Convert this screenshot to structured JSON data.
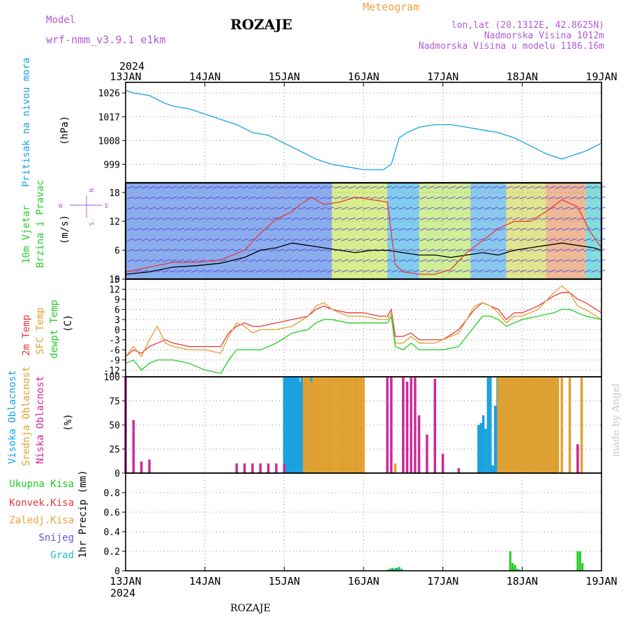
{
  "header": {
    "model_label": "Model",
    "model_value": "wrf-nmm_v3.9.1 e1km",
    "station": "ROZAJE",
    "product": "Meteogram",
    "coords": "lon,lat (20.1312E, 42.8625N)",
    "altitude": "Nadmorska Visina 1012m",
    "model_altitude": "Nadmorska Visina u modelu 1186.16m"
  },
  "footer": {
    "station": "ROZAJE",
    "credit": "made by Angel"
  },
  "time_axis": {
    "year": "2024",
    "labels": [
      "13JAN",
      "14JAN",
      "15JAN",
      "16JAN",
      "17JAN",
      "18JAN",
      "19JAN"
    ]
  },
  "colors": {
    "pressure": "#1aa2e0",
    "wind_label": "#2ec92e",
    "t2m": "#e53a3a",
    "sfc": "#e0a030",
    "dewpt": "#22cc22",
    "cloud_high": "#1aa2e0",
    "cloud_mid": "#e0a030",
    "cloud_low": "#cc2a9c",
    "magenta": "#b25ad8",
    "orange": "#f0a040"
  },
  "panels": {
    "pressure": {
      "label": "Pritisak na nivou mora",
      "unit": "(hPa)"
    },
    "wind": {
      "label1": "10m Vjetar",
      "label2": "Brzina i Pravac",
      "unit": "(m/s)",
      "compass": {
        "north": "N",
        "east": "E",
        "west": "W",
        "south": "S"
      }
    },
    "temp": {
      "label1": "2m Temp",
      "label2": "SFC Temp",
      "label3": "dewpt Temp",
      "unit": "(C)"
    },
    "cloud": {
      "label1": "Visoka Oblacnost",
      "label2": "Srednja Oblacnost",
      "label3": "Niska Oblacnost",
      "unit": "(%)"
    },
    "precip": {
      "legend": [
        "Ukupna Kisa",
        "Konvek.Kisa",
        "Zaledj.Kisa",
        "Snijeg",
        "Grad"
      ],
      "unit": "1hr Precip (mm)"
    }
  },
  "chart_data": [
    {
      "type": "line",
      "name": "pressure",
      "x_range_days": [
        13,
        19
      ],
      "ylim": [
        992,
        1030
      ],
      "yticks": [
        999,
        1008,
        1017,
        1026
      ],
      "series": [
        {
          "name": "",
          "x": [
            13.0,
            13.1,
            13.3,
            13.5,
            13.6,
            13.8,
            14.0,
            14.2,
            14.4,
            14.6,
            14.8,
            15.0,
            15.2,
            15.4,
            15.6,
            15.8,
            16.0,
            16.15,
            16.25,
            16.35,
            16.45,
            16.55,
            16.7,
            16.9,
            17.1,
            17.3,
            17.5,
            17.7,
            17.9,
            18.1,
            18.3,
            18.5,
            18.6,
            18.7,
            18.8,
            19.0
          ],
          "values": [
            1027,
            1026,
            1025,
            1022,
            1021,
            1020,
            1018,
            1016,
            1014,
            1011,
            1010,
            1007,
            1004,
            1001,
            999,
            998,
            997,
            997,
            997,
            999,
            1009,
            1011,
            1013,
            1014,
            1014,
            1013,
            1012,
            1011,
            1009,
            1006,
            1003,
            1001,
            1002,
            1003,
            1004,
            1007
          ]
        }
      ]
    },
    {
      "type": "line",
      "name": "wind",
      "x_range_days": [
        13,
        19
      ],
      "ylim": [
        0,
        20
      ],
      "yticks": [
        0,
        6,
        12,
        18
      ],
      "series": [
        {
          "name": "",
          "x": [
            13.0,
            13.3,
            13.6,
            13.9,
            14.2,
            14.5,
            14.7,
            14.9,
            15.1,
            15.3,
            15.5,
            15.7,
            15.9,
            16.1,
            16.3,
            16.5,
            16.7,
            16.9,
            17.1,
            17.3,
            17.5,
            17.7,
            17.9,
            18.1,
            18.3,
            18.5,
            18.7,
            18.9,
            19.0
          ],
          "values": [
            1.0,
            1.5,
            2.5,
            2.8,
            3.3,
            4.5,
            6.0,
            6.5,
            7.5,
            7.0,
            6.5,
            6.0,
            5.5,
            6.0,
            6.0,
            5.5,
            5.0,
            5.0,
            4.5,
            5.0,
            5.5,
            5.0,
            6.0,
            6.5,
            7.0,
            7.5,
            7.0,
            6.5,
            6.0
          ]
        },
        {
          "name": "",
          "x": [
            13.0,
            13.3,
            13.6,
            13.9,
            14.2,
            14.5,
            14.7,
            14.9,
            15.1,
            15.2,
            15.35,
            15.5,
            15.7,
            15.9,
            16.1,
            16.3,
            16.4,
            16.5,
            16.7,
            16.9,
            17.1,
            17.3,
            17.5,
            17.7,
            17.9,
            18.1,
            18.3,
            18.5,
            18.7,
            18.85,
            19.0
          ],
          "values": [
            1.5,
            2.5,
            3.5,
            3.5,
            4.0,
            6.0,
            9.5,
            12.5,
            14.0,
            15.5,
            17.0,
            15.5,
            16.0,
            17.0,
            16.5,
            16.0,
            3.0,
            1.5,
            1.0,
            1.0,
            2.0,
            5.5,
            8.0,
            10.5,
            12.0,
            12.0,
            14.0,
            16.5,
            15.0,
            10.0,
            6.5
          ]
        }
      ]
    },
    {
      "type": "line",
      "name": "temperature",
      "x_range_days": [
        13,
        19
      ],
      "ylim": [
        -14,
        15
      ],
      "yticks": [
        -12,
        -9,
        -6,
        -3,
        0,
        3,
        6,
        9,
        12,
        15
      ],
      "series": [
        {
          "name": "",
          "x": [
            13.0,
            13.1,
            13.2,
            13.3,
            13.4,
            13.5,
            13.6,
            13.8,
            14.0,
            14.2,
            14.3,
            14.4,
            14.5,
            14.6,
            14.7,
            14.9,
            15.1,
            15.3,
            15.4,
            15.5,
            15.6,
            15.8,
            16.0,
            16.2,
            16.3,
            16.35,
            16.4,
            16.5,
            16.6,
            16.7,
            16.9,
            17.0,
            17.2,
            17.4,
            17.5,
            17.6,
            17.7,
            17.8,
            17.9,
            18.0,
            18.2,
            18.4,
            18.5,
            18.6,
            18.7,
            18.8,
            19.0
          ],
          "values": [
            -8,
            -6,
            -7,
            -5,
            -4,
            -3,
            -4,
            -5,
            -5,
            -5,
            -1,
            1,
            2,
            1,
            1,
            2,
            3,
            4,
            6,
            7,
            6,
            5,
            5,
            4,
            4,
            6,
            -2,
            -2,
            -1,
            -3,
            -3,
            -3,
            0,
            6,
            8,
            7,
            6,
            3,
            5,
            5,
            7,
            10,
            11,
            11,
            9,
            8,
            5
          ]
        },
        {
          "name": "",
          "x": [
            13.0,
            13.1,
            13.2,
            13.3,
            13.4,
            13.5,
            13.6,
            13.8,
            14.0,
            14.2,
            14.3,
            14.4,
            14.5,
            14.6,
            14.7,
            14.9,
            15.1,
            15.3,
            15.4,
            15.5,
            15.6,
            15.8,
            16.0,
            16.2,
            16.3,
            16.35,
            16.4,
            16.5,
            16.6,
            16.7,
            16.9,
            17.0,
            17.2,
            17.4,
            17.5,
            17.6,
            17.7,
            17.8,
            17.9,
            18.0,
            18.2,
            18.4,
            18.5,
            18.6,
            18.7,
            18.8,
            19.0
          ],
          "values": [
            -8,
            -5,
            -8,
            -3,
            1,
            -4,
            -5,
            -6,
            -6,
            -7,
            -2,
            2,
            1,
            -1,
            0,
            0,
            1,
            4,
            7,
            8,
            6,
            4,
            4,
            3,
            3,
            5,
            -4,
            -4,
            -2,
            -4,
            -4,
            -3,
            -1,
            7,
            8,
            7,
            5,
            2,
            4,
            4,
            6,
            11,
            13,
            11,
            7,
            6,
            3
          ]
        },
        {
          "name": "",
          "x": [
            13.0,
            13.1,
            13.2,
            13.3,
            13.4,
            13.5,
            13.6,
            13.8,
            14.0,
            14.2,
            14.3,
            14.4,
            14.5,
            14.6,
            14.7,
            14.9,
            15.1,
            15.3,
            15.4,
            15.5,
            15.6,
            15.8,
            16.0,
            16.2,
            16.3,
            16.35,
            16.4,
            16.5,
            16.6,
            16.7,
            16.9,
            17.0,
            17.2,
            17.4,
            17.5,
            17.6,
            17.7,
            17.8,
            17.9,
            18.0,
            18.2,
            18.4,
            18.5,
            18.6,
            18.7,
            18.8,
            19.0
          ],
          "values": [
            -10,
            -9,
            -12,
            -10,
            -9,
            -9,
            -9,
            -10,
            -12,
            -13,
            -9,
            -6,
            -6,
            -6,
            -6,
            -4,
            -1,
            0,
            2,
            3,
            3,
            2,
            2,
            2,
            2,
            4,
            -5,
            -6,
            -4,
            -6,
            -6,
            -6,
            -5,
            1,
            4,
            4,
            3,
            1,
            2,
            3,
            4,
            5,
            6,
            6,
            5,
            4,
            3
          ]
        }
      ]
    },
    {
      "type": "bar",
      "name": "cloud",
      "x_range_days": [
        13,
        19
      ],
      "ylim": [
        0,
        100
      ],
      "yticks": [
        0,
        25,
        50,
        75,
        100
      ],
      "series": [
        {
          "name": "",
          "x": [
            15.0,
            15.02,
            15.04,
            15.06,
            15.08,
            15.1,
            15.12,
            15.14,
            15.16,
            15.18,
            15.2,
            15.22,
            15.24,
            15.26,
            15.28,
            15.3,
            15.32,
            15.34,
            15.36,
            15.38,
            15.4,
            15.42,
            17.45,
            17.48,
            17.51,
            17.54,
            17.57,
            17.6,
            17.63,
            17.66,
            17.69,
            17.72,
            17.75,
            17.78,
            17.81,
            17.84,
            17.87,
            17.9,
            17.93,
            17.96,
            17.99,
            18.02,
            18.05,
            18.08,
            18.11,
            18.14,
            18.17,
            18.2,
            18.23,
            18.26,
            18.29,
            18.32,
            18.35,
            18.38,
            18.41,
            18.44
          ],
          "values": [
            100,
            100,
            100,
            100,
            100,
            100,
            100,
            100,
            100,
            100,
            95,
            100,
            100,
            100,
            100,
            100,
            92,
            100,
            100,
            60,
            100,
            100,
            50,
            52,
            60,
            46,
            100,
            100,
            8,
            70,
            100,
            100,
            100,
            100,
            100,
            100,
            100,
            100,
            100,
            100,
            100,
            100,
            100,
            100,
            100,
            100,
            100,
            100,
            100,
            100,
            100,
            100,
            100,
            100,
            92,
            88
          ]
        },
        {
          "name": "",
          "x": [
            15.25,
            15.28,
            15.31,
            15.34,
            15.37,
            15.4,
            15.43,
            15.46,
            15.49,
            15.52,
            15.55,
            15.58,
            15.61,
            15.64,
            15.67,
            15.7,
            15.73,
            15.76,
            15.79,
            15.82,
            15.85,
            15.88,
            15.91,
            15.94,
            15.97,
            16.0,
            16.4,
            16.5,
            17.7,
            17.73,
            17.76,
            17.79,
            17.82,
            17.85,
            17.88,
            17.91,
            17.94,
            17.97,
            18.0,
            18.03,
            18.06,
            18.09,
            18.12,
            18.15,
            18.18,
            18.21,
            18.24,
            18.27,
            18.3,
            18.33,
            18.36,
            18.39,
            18.42,
            18.45,
            18.5,
            18.6,
            18.7,
            18.75
          ],
          "values": [
            100,
            100,
            100,
            95,
            100,
            100,
            100,
            100,
            100,
            100,
            100,
            100,
            100,
            100,
            100,
            100,
            100,
            100,
            100,
            100,
            100,
            100,
            100,
            100,
            100,
            100,
            10,
            100,
            100,
            100,
            100,
            100,
            100,
            100,
            100,
            100,
            100,
            100,
            100,
            100,
            100,
            100,
            100,
            100,
            100,
            100,
            100,
            100,
            100,
            100,
            100,
            100,
            100,
            100,
            100,
            100,
            30,
            100
          ]
        },
        {
          "name": "",
          "x": [
            13.0,
            13.1,
            13.2,
            13.3,
            14.4,
            14.5,
            14.6,
            14.7,
            14.8,
            14.9,
            15.0,
            16.3,
            16.35,
            16.5,
            16.55,
            16.6,
            16.65,
            16.7,
            16.8,
            16.9,
            17.0,
            17.2,
            18.7
          ],
          "values": [
            100,
            55,
            12,
            14,
            10,
            10,
            10,
            10,
            10,
            10,
            10,
            100,
            100,
            100,
            95,
            100,
            100,
            60,
            40,
            98,
            20,
            5,
            30
          ]
        }
      ]
    },
    {
      "type": "bar",
      "name": "precip",
      "x_range_days": [
        13,
        19
      ],
      "ylim": [
        0,
        1.0
      ],
      "yticks": [
        0,
        0.2,
        0.4,
        0.6,
        0.8
      ],
      "series": [
        {
          "name": "",
          "x": [
            16.3,
            16.33,
            16.36,
            16.39,
            16.42,
            16.45,
            16.48,
            17.85,
            17.88,
            17.91,
            17.94,
            17.97,
            18.7,
            18.73,
            18.76
          ],
          "values": [
            0.01,
            0.02,
            0.03,
            0.02,
            0.03,
            0.04,
            0.02,
            0.2,
            0.08,
            0.06,
            0.02,
            0.01,
            0.2,
            0.2,
            0.08
          ]
        },
        {
          "name": "",
          "x": [
            16.38,
            16.41,
            16.44
          ],
          "values": [
            0.02,
            0.03,
            0.01
          ]
        }
      ]
    }
  ]
}
